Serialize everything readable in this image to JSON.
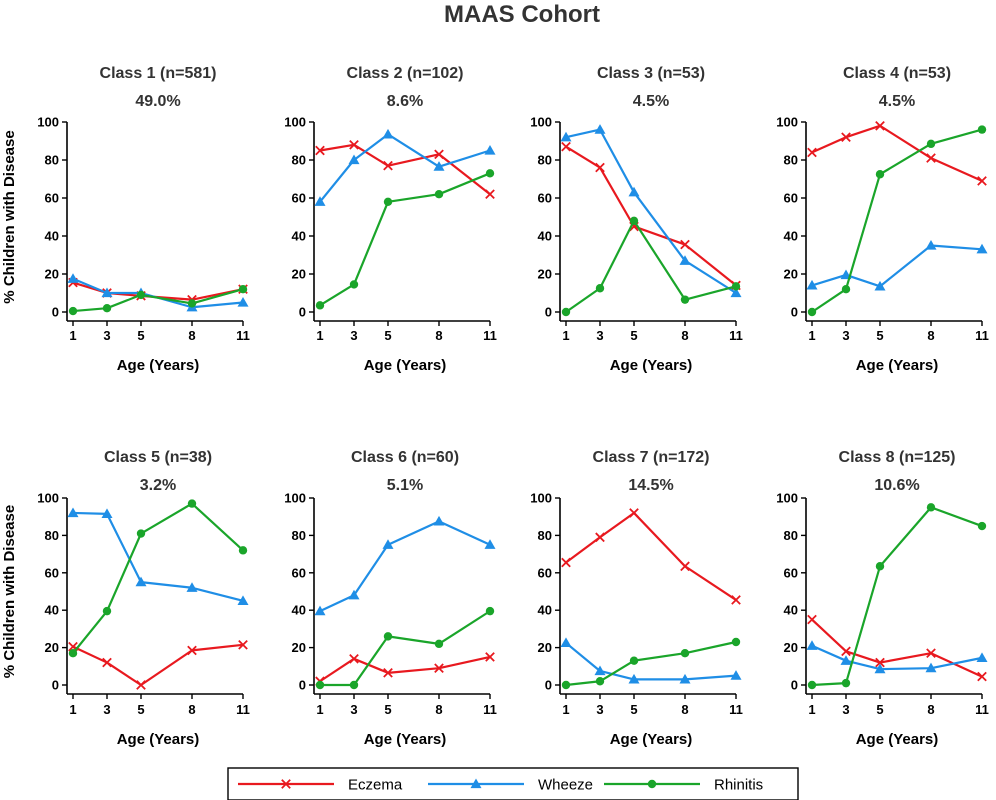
{
  "title": "MAAS Cohort",
  "colors": {
    "Eczema": "#e8191f",
    "Wheeze": "#1f8ee6",
    "Rhinitis": "#1aa52a"
  },
  "markers": {
    "Eczema": "x",
    "Wheeze": "triangle",
    "Rhinitis": "circle"
  },
  "legend": {
    "position": "bottom-center",
    "items": [
      "Eczema",
      "Wheeze",
      "Rhinitis"
    ]
  },
  "chart_data": [
    {
      "type": "line",
      "title": "Class 1 (n=581)",
      "subtitle": "49.0%",
      "x": [
        1,
        3,
        5,
        8,
        11
      ],
      "xticks": [
        "1",
        "3",
        "5",
        "8",
        "11"
      ],
      "xlabel": "Age (Years)",
      "ylabel": "% Children with Disease",
      "ylim": [
        0,
        100
      ],
      "yticks": [
        0,
        20,
        40,
        60,
        80,
        100
      ],
      "series": [
        {
          "name": "Eczema",
          "values": [
            15.5,
            10,
            8.5,
            6.5,
            12
          ]
        },
        {
          "name": "Wheeze",
          "values": [
            17.5,
            10,
            10,
            2.5,
            5
          ]
        },
        {
          "name": "Rhinitis",
          "values": [
            0.5,
            2,
            9,
            4.5,
            12
          ]
        }
      ]
    },
    {
      "type": "line",
      "title": "Class 2 (n=102)",
      "subtitle": "8.6%",
      "x": [
        1,
        3,
        5,
        8,
        11
      ],
      "xticks": [
        "1",
        "3",
        "5",
        "8",
        "11"
      ],
      "xlabel": "Age (Years)",
      "ylabel": "",
      "ylim": [
        0,
        100
      ],
      "yticks": [
        0,
        20,
        40,
        60,
        80,
        100
      ],
      "series": [
        {
          "name": "Eczema",
          "values": [
            85,
            88,
            77,
            83,
            62
          ]
        },
        {
          "name": "Wheeze",
          "values": [
            58,
            80,
            93.5,
            76.5,
            85
          ]
        },
        {
          "name": "Rhinitis",
          "values": [
            3.5,
            14.5,
            58,
            62,
            73
          ]
        }
      ]
    },
    {
      "type": "line",
      "title": "Class 3 (n=53)",
      "subtitle": "4.5%",
      "x": [
        1,
        3,
        5,
        8,
        11
      ],
      "xticks": [
        "1",
        "3",
        "5",
        "8",
        "11"
      ],
      "xlabel": "Age (Years)",
      "ylabel": "",
      "ylim": [
        0,
        100
      ],
      "yticks": [
        0,
        20,
        40,
        60,
        80,
        100
      ],
      "series": [
        {
          "name": "Eczema",
          "values": [
            87,
            76,
            45,
            35.5,
            14
          ]
        },
        {
          "name": "Wheeze",
          "values": [
            92,
            96,
            63,
            27,
            10
          ]
        },
        {
          "name": "Rhinitis",
          "values": [
            0,
            12.5,
            48,
            6.5,
            13.5
          ]
        }
      ]
    },
    {
      "type": "line",
      "title": "Class 4 (n=53)",
      "subtitle": "4.5%",
      "x": [
        1,
        3,
        5,
        8,
        11
      ],
      "xticks": [
        "1",
        "3",
        "5",
        "8",
        "11"
      ],
      "xlabel": "Age (Years)",
      "ylabel": "",
      "ylim": [
        0,
        100
      ],
      "yticks": [
        0,
        20,
        40,
        60,
        80,
        100
      ],
      "series": [
        {
          "name": "Eczema",
          "values": [
            84,
            92,
            98,
            81,
            69
          ]
        },
        {
          "name": "Wheeze",
          "values": [
            14,
            19.5,
            13.5,
            35,
            33
          ]
        },
        {
          "name": "Rhinitis",
          "values": [
            0,
            12,
            72.5,
            88.5,
            96
          ]
        }
      ]
    },
    {
      "type": "line",
      "title": "Class 5 (n=38)",
      "subtitle": "3.2%",
      "x": [
        1,
        3,
        5,
        8,
        11
      ],
      "xticks": [
        "1",
        "3",
        "5",
        "8",
        "11"
      ],
      "xlabel": "Age (Years)",
      "ylabel": "% Children with Disease",
      "ylim": [
        0,
        100
      ],
      "yticks": [
        0,
        20,
        40,
        60,
        80,
        100
      ],
      "series": [
        {
          "name": "Eczema",
          "values": [
            20.5,
            12,
            0,
            18.5,
            21.5
          ]
        },
        {
          "name": "Wheeze",
          "values": [
            92,
            91.5,
            55,
            52,
            45
          ]
        },
        {
          "name": "Rhinitis",
          "values": [
            17,
            39.5,
            81,
            97,
            72
          ]
        }
      ]
    },
    {
      "type": "line",
      "title": "Class 6 (n=60)",
      "subtitle": "5.1%",
      "x": [
        1,
        3,
        5,
        8,
        11
      ],
      "xticks": [
        "1",
        "3",
        "5",
        "8",
        "11"
      ],
      "xlabel": "Age (Years)",
      "ylabel": "",
      "ylim": [
        0,
        100
      ],
      "yticks": [
        0,
        20,
        40,
        60,
        80,
        100
      ],
      "series": [
        {
          "name": "Eczema",
          "values": [
            2,
            14,
            6.5,
            9,
            15
          ]
        },
        {
          "name": "Wheeze",
          "values": [
            39.5,
            48,
            75,
            87.5,
            75
          ]
        },
        {
          "name": "Rhinitis",
          "values": [
            0,
            0,
            26,
            22,
            39.5
          ]
        }
      ]
    },
    {
      "type": "line",
      "title": "Class 7 (n=172)",
      "subtitle": "14.5%",
      "x": [
        1,
        3,
        5,
        8,
        11
      ],
      "xticks": [
        "1",
        "3",
        "5",
        "8",
        "11"
      ],
      "xlabel": "Age (Years)",
      "ylabel": "",
      "ylim": [
        0,
        100
      ],
      "yticks": [
        0,
        20,
        40,
        60,
        80,
        100
      ],
      "series": [
        {
          "name": "Eczema",
          "values": [
            65.5,
            79,
            92,
            63.5,
            45.5
          ]
        },
        {
          "name": "Wheeze",
          "values": [
            22.5,
            7.5,
            3,
            3,
            5
          ]
        },
        {
          "name": "Rhinitis",
          "values": [
            0,
            2,
            13,
            17,
            23
          ]
        }
      ]
    },
    {
      "type": "line",
      "title": "Class 8 (n=125)",
      "subtitle": "10.6%",
      "x": [
        1,
        3,
        5,
        8,
        11
      ],
      "xticks": [
        "1",
        "3",
        "5",
        "8",
        "11"
      ],
      "xlabel": "Age (Years)",
      "ylabel": "",
      "ylim": [
        0,
        100
      ],
      "yticks": [
        0,
        20,
        40,
        60,
        80,
        100
      ],
      "series": [
        {
          "name": "Eczema",
          "values": [
            35,
            18,
            12,
            17,
            4.5
          ]
        },
        {
          "name": "Wheeze",
          "values": [
            21,
            13,
            8.5,
            9,
            14.5
          ]
        },
        {
          "name": "Rhinitis",
          "values": [
            0,
            1,
            63.5,
            95,
            85
          ]
        }
      ]
    }
  ]
}
